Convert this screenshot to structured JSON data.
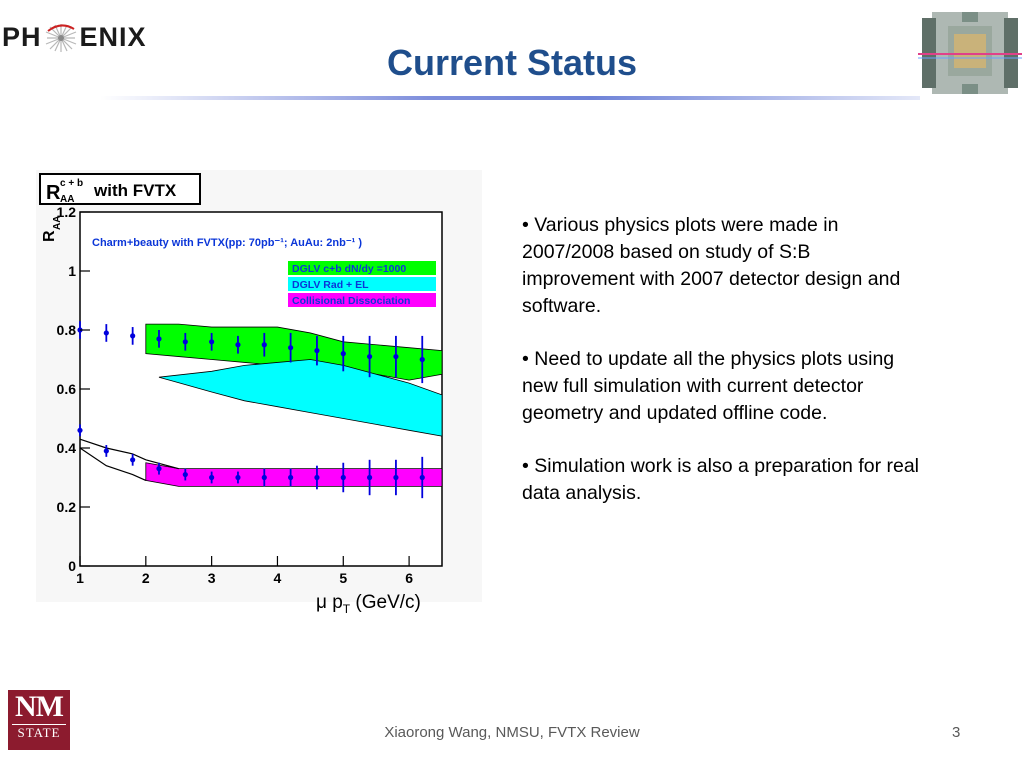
{
  "header": {
    "logo_left_1": "PH",
    "logo_left_2": "ENIX",
    "title": "Current Status"
  },
  "colors": {
    "title": "#1f4e8c",
    "green_band": "#00ff00",
    "cyan_band": "#00ffff",
    "magenta_band": "#ff00ff",
    "points": "#0000dd",
    "legend_text": "#0b36d8"
  },
  "chart_data": {
    "type": "line",
    "title": "with FVTX",
    "title_symbol": "R",
    "title_superscript": "c + b",
    "title_subscript": "AA",
    "ylabel": "R",
    "ylabel_subscript": "AA",
    "subtitle": "Charm+beauty with FVTX(pp: 70pb⁻¹; AuAu: 2nb⁻¹ )",
    "xlim": [
      1,
      6.5
    ],
    "ylim": [
      0,
      1.2
    ],
    "x_ticks": [
      "1",
      "2",
      "3",
      "4",
      "5",
      "6"
    ],
    "y_ticks": [
      "0",
      "0.2",
      "0.4",
      "0.6",
      "0.8",
      "1",
      "1.2"
    ],
    "caption_xlabel_main": "μ p",
    "caption_xlabel_sub": "T",
    "caption_xlabel_unit": " (GeV/c)",
    "legend": [
      {
        "label": "DGLV c+b dN/dy =1000",
        "color": "#00ff00"
      },
      {
        "label": "DGLV Rad + EL",
        "color": "#00ffff"
      },
      {
        "label": "Collisional Dissociation",
        "color": "#ff00ff"
      }
    ],
    "bands": [
      {
        "name": "DGLV c+b dN/dy =1000",
        "color": "#00ff00",
        "x": [
          2.0,
          2.5,
          3.0,
          3.5,
          4.0,
          4.5,
          5.0,
          5.5,
          6.0,
          6.5
        ],
        "lower": [
          0.72,
          0.71,
          0.7,
          0.69,
          0.68,
          0.66,
          0.65,
          0.65,
          0.63,
          0.65
        ],
        "upper": [
          0.82,
          0.82,
          0.81,
          0.81,
          0.81,
          0.79,
          0.76,
          0.75,
          0.74,
          0.73
        ]
      },
      {
        "name": "DGLV Rad + EL",
        "color": "#00ffff",
        "x": [
          2.2,
          3.0,
          3.5,
          4.0,
          4.5,
          5.0,
          5.5,
          6.0,
          6.5
        ],
        "lower": [
          0.64,
          0.59,
          0.56,
          0.54,
          0.52,
          0.5,
          0.48,
          0.46,
          0.44
        ],
        "upper": [
          0.64,
          0.66,
          0.68,
          0.69,
          0.7,
          0.68,
          0.65,
          0.62,
          0.58
        ]
      },
      {
        "name": "Collisional Dissociation",
        "color": "#ff00ff",
        "x": [
          2.0,
          2.5,
          3.0,
          4.0,
          5.0,
          6.0,
          6.5
        ],
        "lower": [
          0.29,
          0.27,
          0.27,
          0.27,
          0.27,
          0.27,
          0.27
        ],
        "upper": [
          0.35,
          0.33,
          0.33,
          0.33,
          0.33,
          0.33,
          0.33
        ]
      }
    ],
    "curves": [
      {
        "x": [
          1.0,
          1.4,
          1.8,
          2.0
        ],
        "y": [
          0.4,
          0.34,
          0.31,
          0.29
        ],
        "color": "#000000"
      },
      {
        "x": [
          1.0,
          1.4,
          1.8,
          2.0,
          2.5
        ],
        "y": [
          0.43,
          0.4,
          0.38,
          0.36,
          0.33
        ],
        "color": "#000000"
      }
    ],
    "series": [
      {
        "x": [
          1.0,
          1.4,
          1.8
        ],
        "y": [
          0.8,
          0.79,
          0.78
        ],
        "err": [
          0.03,
          0.03,
          0.03
        ]
      },
      {
        "x": [
          2.2,
          2.6,
          3.0,
          3.4,
          3.8,
          4.2,
          4.6,
          5.0,
          5.4,
          5.8,
          6.2
        ],
        "y": [
          0.77,
          0.76,
          0.76,
          0.75,
          0.75,
          0.74,
          0.73,
          0.72,
          0.71,
          0.71,
          0.7
        ],
        "err": [
          0.03,
          0.03,
          0.03,
          0.03,
          0.04,
          0.05,
          0.05,
          0.06,
          0.07,
          0.07,
          0.08
        ]
      },
      {
        "x": [
          1.0,
          1.4,
          1.8,
          2.2,
          2.6,
          3.0,
          3.4,
          3.8,
          4.2,
          4.6,
          5.0,
          5.4,
          5.8,
          6.2
        ],
        "y": [
          0.46,
          0.39,
          0.36,
          0.33,
          0.31,
          0.3,
          0.3,
          0.3,
          0.3,
          0.3,
          0.3,
          0.3,
          0.3,
          0.3
        ],
        "err": [
          0.02,
          0.02,
          0.02,
          0.02,
          0.02,
          0.02,
          0.02,
          0.03,
          0.03,
          0.04,
          0.05,
          0.06,
          0.06,
          0.07
        ]
      }
    ],
    "grid": false
  },
  "bullets": [
    "• Various physics plots were made in 2007/2008 based on study of S:B improvement with 2007 detector design and software.",
    "• Need to update all the physics plots using new full simulation with current detector geometry and updated offline code.",
    "• Simulation work is also a preparation for real data analysis."
  ],
  "footer": {
    "text": "Xiaorong Wang, NMSU, FVTX Review",
    "page": "3",
    "logo_nm": "NM",
    "logo_state": "STATE"
  }
}
